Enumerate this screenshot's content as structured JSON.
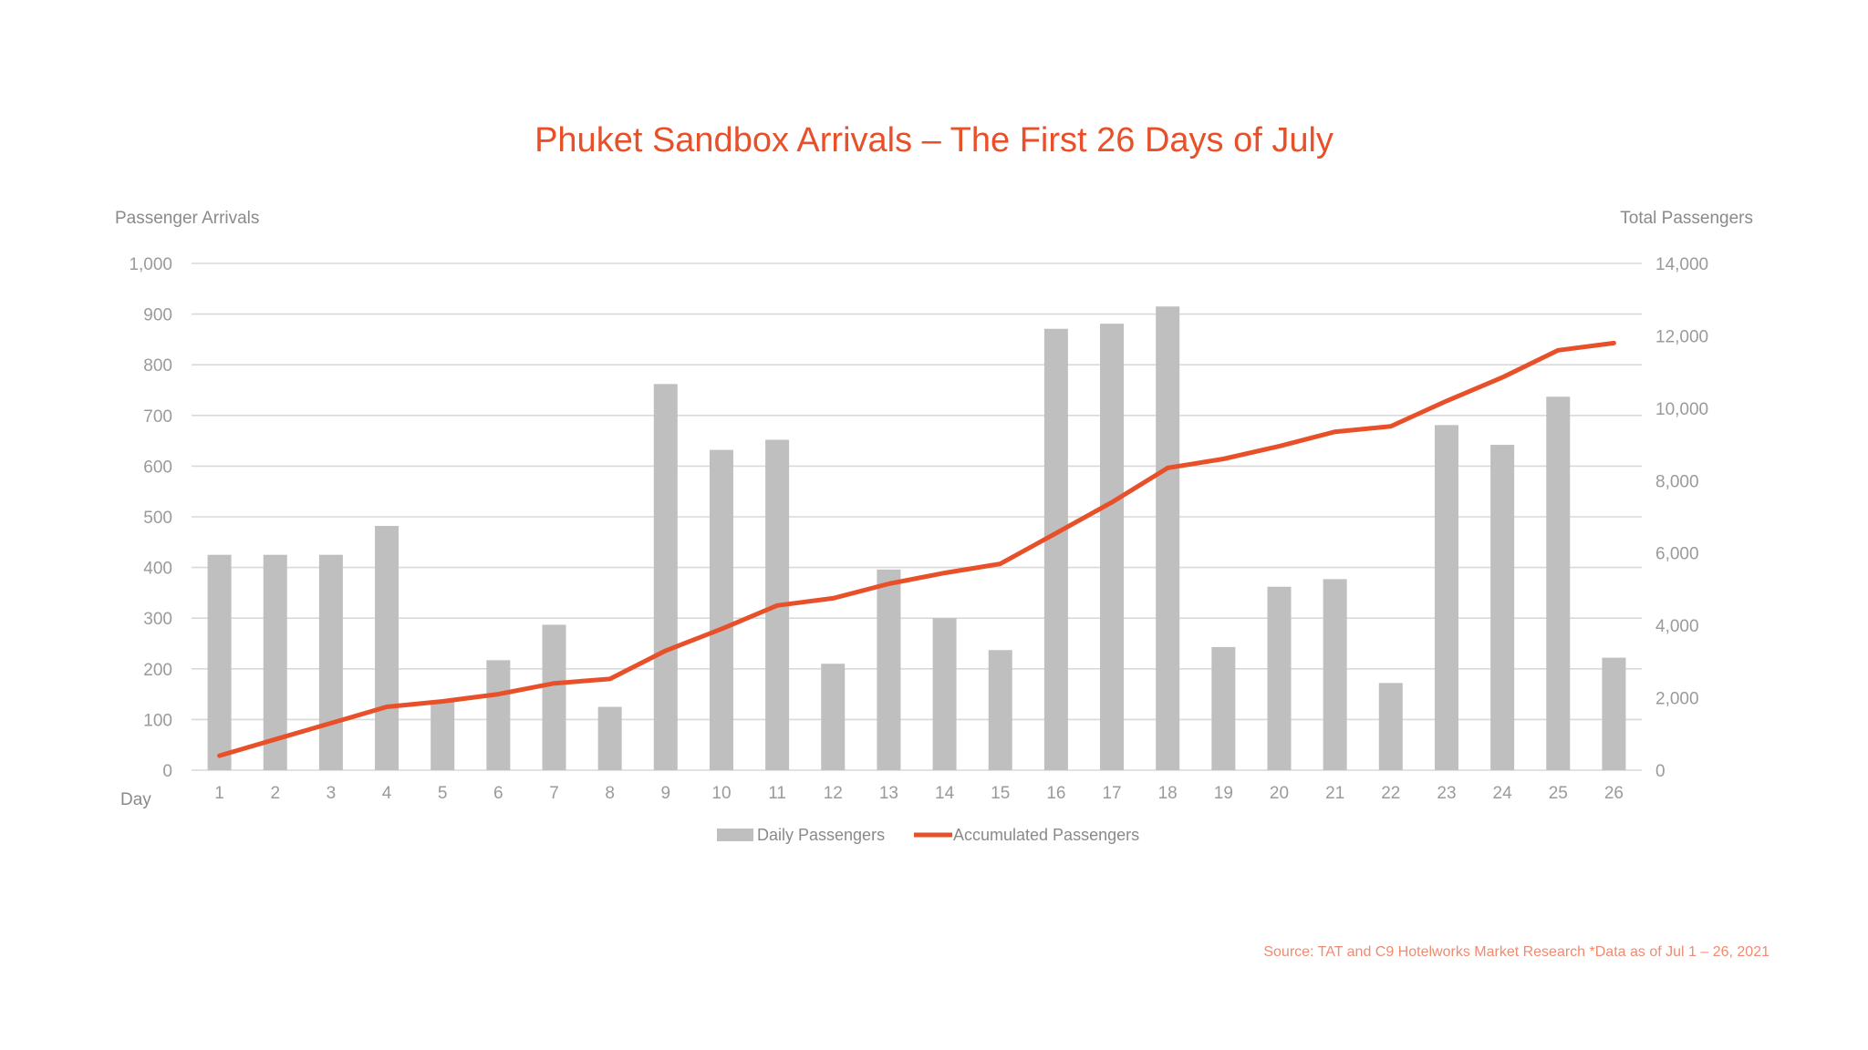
{
  "chart_data": {
    "type": "bar+line",
    "title": "Phuket Sandbox Arrivals – The First 26 Days of July",
    "xlabel": "Day",
    "ylabel_left": "Passenger Arrivals",
    "ylabel_right": "Total Passengers",
    "categories": [
      "1",
      "2",
      "3",
      "4",
      "5",
      "6",
      "7",
      "8",
      "9",
      "10",
      "11",
      "12",
      "13",
      "14",
      "15",
      "16",
      "17",
      "18",
      "19",
      "20",
      "21",
      "22",
      "23",
      "24",
      "25",
      "26"
    ],
    "ylim_left": [
      0,
      1000
    ],
    "yticks_left": [
      "0",
      "100",
      "200",
      "300",
      "400",
      "500",
      "600",
      "700",
      "800",
      "900",
      "1,000"
    ],
    "ylim_right": [
      0,
      14000
    ],
    "yticks_right": [
      "0",
      "2,000",
      "4,000",
      "6,000",
      "8,000",
      "10,000",
      "12,000",
      "14,000"
    ],
    "grid": true,
    "legend_position": "bottom",
    "series": [
      {
        "name": "Daily Passengers",
        "type": "bar",
        "axis": "left",
        "color": "#bfbfbf",
        "values": [
          425,
          425,
          425,
          482,
          137,
          217,
          287,
          125,
          762,
          632,
          652,
          210,
          396,
          300,
          237,
          871,
          881,
          915,
          243,
          362,
          377,
          172,
          681,
          642,
          737,
          222
        ]
      },
      {
        "name": "Accumulated Passengers",
        "type": "line",
        "axis": "right",
        "color": "#e8502a",
        "values": [
          400,
          850,
          1300,
          1750,
          1900,
          2100,
          2400,
          2520,
          3300,
          3900,
          4550,
          4750,
          5150,
          5450,
          5700,
          6550,
          7400,
          8350,
          8600,
          8950,
          9350,
          9500,
          10200,
          10850,
          11600,
          11800
        ]
      }
    ],
    "source": "Source: TAT and C9 Hotelworks Market Research *Data as of Jul 1 – 26, 2021"
  }
}
